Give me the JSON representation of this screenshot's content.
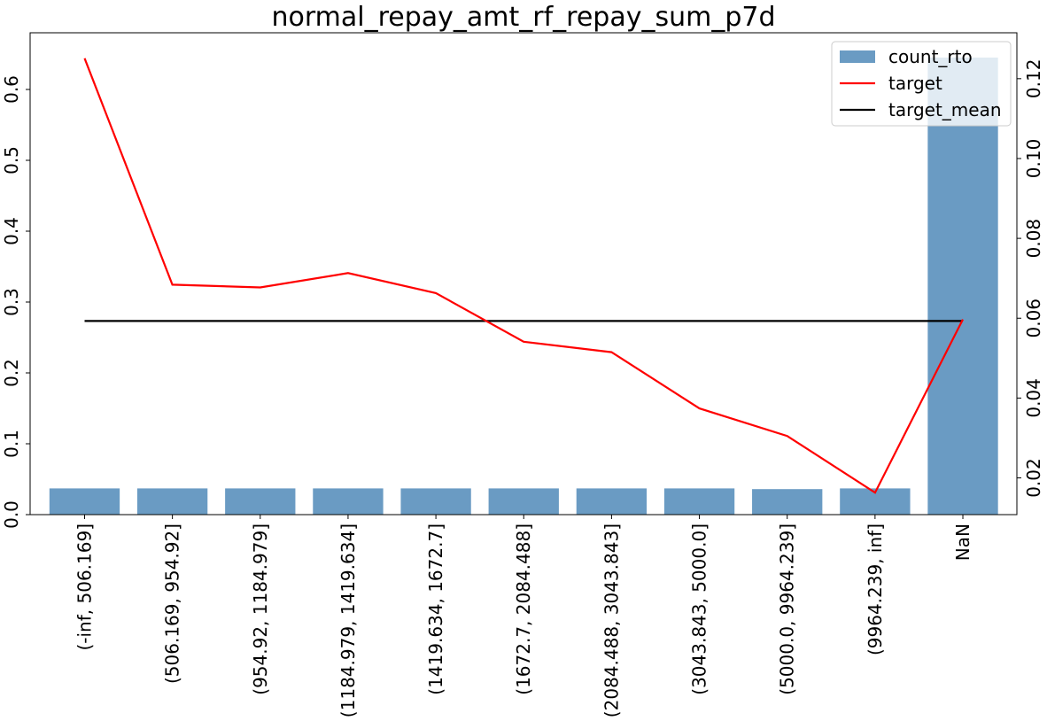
{
  "chart_data": {
    "type": "bar",
    "title": "normal_repay_amt_rf_repay_sum_p7d",
    "categories": [
      "(-inf, 506.169]",
      "(506.169, 954.92]",
      "(954.92, 1184.979]",
      "(1184.979, 1419.634]",
      "(1419.634, 1672.7]",
      "(1672.7, 2084.488]",
      "(2084.488, 3043.843]",
      "(3043.843, 5000.0]",
      "(5000.0, 9964.239]",
      "(9964.239, inf]",
      "NaN"
    ],
    "series": [
      {
        "name": "count_rto",
        "type": "bar",
        "axis": "left",
        "color": "#6a9bc3",
        "values": [
          0.037,
          0.037,
          0.037,
          0.037,
          0.037,
          0.037,
          0.037,
          0.037,
          0.036,
          0.037,
          0.645
        ]
      },
      {
        "name": "target",
        "type": "line",
        "axis": "right",
        "color": "#ff0000",
        "values": [
          0.1251,
          0.0684,
          0.0677,
          0.0713,
          0.0663,
          0.0541,
          0.0515,
          0.0374,
          0.0305,
          0.0163,
          0.0597
        ]
      },
      {
        "name": "target_mean",
        "type": "line",
        "axis": "right",
        "color": "#000000",
        "values": [
          0.0593,
          0.0593,
          0.0593,
          0.0593,
          0.0593,
          0.0593,
          0.0593,
          0.0593,
          0.0593,
          0.0593,
          0.0593
        ]
      }
    ],
    "left_axis": {
      "ylim": [
        0,
        0.68
      ],
      "ticks": [
        "0.0",
        "0.1",
        "0.2",
        "0.3",
        "0.4",
        "0.5",
        "0.6"
      ]
    },
    "right_axis": {
      "ylim": [
        0.0108,
        0.1315
      ],
      "ticks": [
        "0.02",
        "0.04",
        "0.06",
        "0.08",
        "0.10",
        "0.12"
      ]
    },
    "legend": {
      "placement": "top-right",
      "entries": [
        "count_rto",
        "target",
        "target_mean"
      ]
    },
    "grid": false
  }
}
